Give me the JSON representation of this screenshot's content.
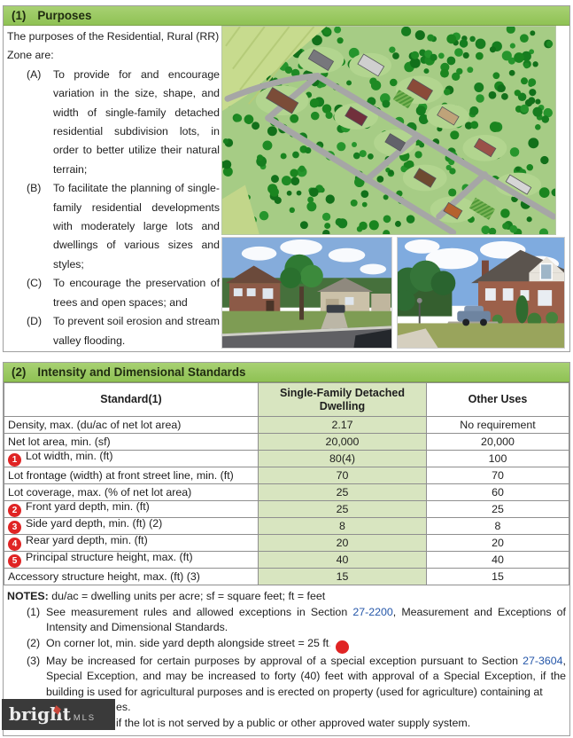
{
  "purposes": {
    "number": "(1)",
    "title": "Purposes",
    "intro": "The purposes of the Residential, Rural (RR) Zone are:",
    "items": [
      {
        "label": "(A)",
        "text": "To provide for and encourage variation in the size, shape, and width of single-family detached residential subdivision lots, in order to better utilize their natural terrain;"
      },
      {
        "label": "(B)",
        "text": "To facilitate the planning of single-family residential developments with moderately large lots and dwellings of various sizes and styles;"
      },
      {
        "label": "(C)",
        "text": "To encourage the preservation of trees and open spaces; and"
      },
      {
        "label": "(D)",
        "text": "To prevent soil erosion and stream valley flooding."
      }
    ]
  },
  "standards": {
    "number": "(2)",
    "title": "Intensity and Dimensional Standards"
  },
  "table": {
    "columns": [
      "Standard(1)",
      "Single-Family Detached Dwelling",
      "Other Uses"
    ],
    "rows": [
      {
        "marker": null,
        "standard": "Density, max. (du/ac of net lot area)",
        "sfd": "2.17",
        "other": "No requirement"
      },
      {
        "marker": null,
        "standard": "Net lot area, min. (sf)",
        "sfd": "20,000",
        "other": "20,000"
      },
      {
        "marker": "1",
        "standard": "Lot width, min. (ft)",
        "sfd": "80(4)",
        "other": "100"
      },
      {
        "marker": null,
        "standard": "Lot frontage (width) at front street line, min. (ft)",
        "sfd": "70",
        "other": "70"
      },
      {
        "marker": null,
        "standard": "Lot coverage, max. (% of net lot area)",
        "sfd": "25",
        "other": "60"
      },
      {
        "marker": "2",
        "standard": "Front yard depth, min. (ft)",
        "sfd": "25",
        "other": "25"
      },
      {
        "marker": "3",
        "standard": "Side yard depth, min. (ft) (2)",
        "sfd": "8",
        "other": "8"
      },
      {
        "marker": "4",
        "standard": "Rear yard depth, min. (ft)",
        "sfd": "20",
        "other": "20"
      },
      {
        "marker": "5",
        "standard": "Principal structure height, max. (ft)",
        "sfd": "40",
        "other": "40"
      },
      {
        "marker": null,
        "standard": "Accessory structure height, max. (ft) (3)",
        "sfd": "15",
        "other": "15"
      }
    ]
  },
  "notes": {
    "header_bold": "NOTES:",
    "header_rest": " du/ac = dwelling units per acre; sf = square feet; ft = feet",
    "items": [
      {
        "label": "(1)",
        "parts": [
          {
            "t": "See measurement rules and allowed exceptions in Section "
          },
          {
            "t": "27-2200",
            "link": true
          },
          {
            "t": ", Measurement and Exceptions of Intensity and Dimensional Standards."
          }
        ]
      },
      {
        "label": "(2)",
        "parts": [
          {
            "t": "On corner lot, min. side yard depth alongside street = 25 ft."
          },
          {
            "circle": "6"
          }
        ]
      },
      {
        "label": "(3)",
        "parts": [
          {
            "t": "May be increased for certain purposes by approval of a special exception pursuant to Section "
          },
          {
            "t": "27-3604",
            "link": true
          },
          {
            "t": ", Special Exception, and may be increased to forty (40) feet with approval of a Special Exception, if the building is used for agricultural purposes and is erected on property (used for agriculture) containing at"
          }
        ]
      }
    ],
    "covered_tail": "es.",
    "last_line": "if the lot is not served by a public or other approved water supply system."
  },
  "watermark": {
    "brand": "bright",
    "suffix": "MLS"
  },
  "colors": {
    "header_green": "#97c95f",
    "cell_green": "#d8e5c0",
    "marker_red": "#e02424",
    "link_blue": "#2456a8",
    "watermark_bg": "#3a3a3a",
    "tree_palette": [
      "#167d1f",
      "#1e8a24",
      "#12701a",
      "#26952c",
      "#1a851f"
    ]
  }
}
